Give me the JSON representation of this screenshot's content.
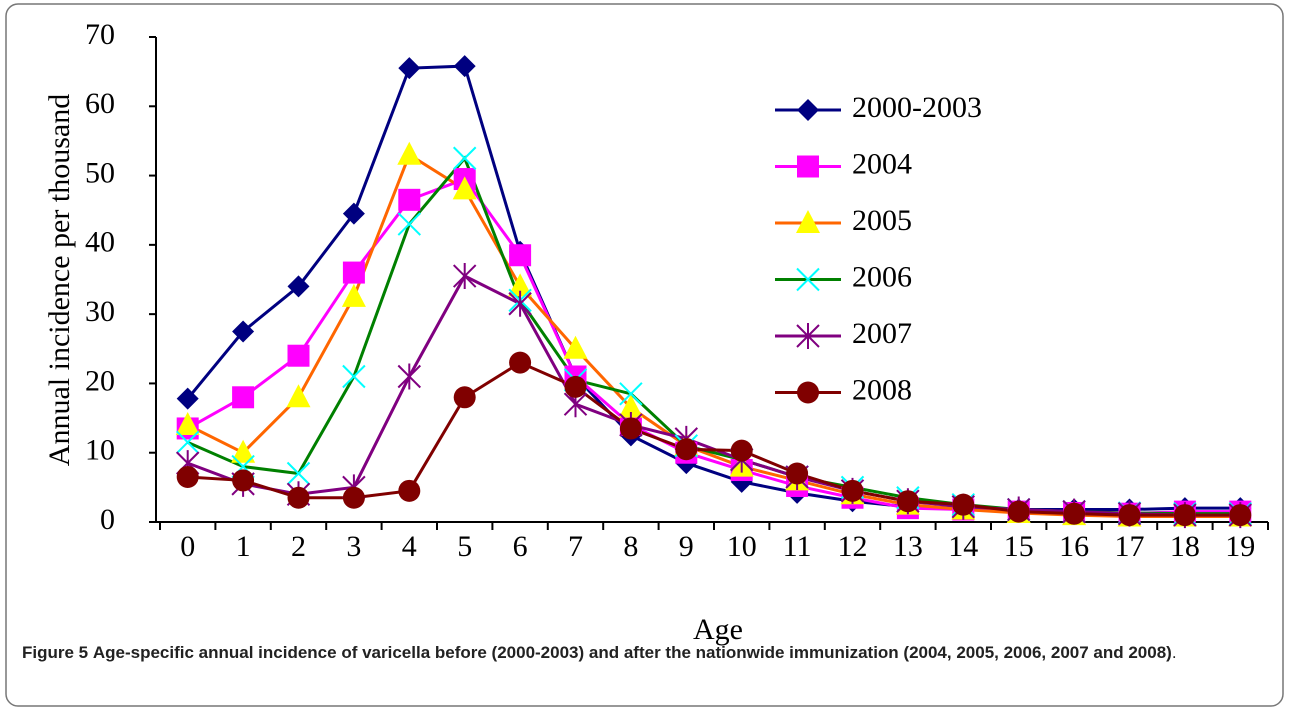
{
  "chart_data": {
    "type": "line",
    "x_label": "Age",
    "y_label": "Annual incidence per thousand",
    "categories": [
      "0",
      "1",
      "2",
      "3",
      "4",
      "5",
      "6",
      "7",
      "8",
      "9",
      "10",
      "11",
      "12",
      "13",
      "14",
      "15",
      "16",
      "17",
      "18",
      "19"
    ],
    "ylim": [
      0,
      70
    ],
    "yticks": [
      0,
      10,
      20,
      30,
      40,
      50,
      60,
      70
    ],
    "grid": false,
    "legend": "upper right",
    "series": [
      {
        "name": "2000-2003",
        "color": "#000080",
        "marker_color": "#000080",
        "marker": "diamond",
        "values": [
          17.8,
          27.5,
          34,
          44.5,
          65.5,
          65.8,
          39,
          21,
          12.5,
          8.5,
          5.8,
          4.2,
          3,
          2.2,
          2,
          1.8,
          1.8,
          1.8,
          2,
          2
        ]
      },
      {
        "name": "2004",
        "color": "#ff00ff",
        "marker_color": "#ff00ff",
        "marker": "square",
        "values": [
          13.5,
          18,
          24,
          36,
          46.5,
          49.5,
          38.5,
          21,
          14,
          10,
          7.5,
          5.2,
          3.5,
          2,
          1.8,
          1.5,
          1.3,
          1.2,
          1.5,
          1.5
        ]
      },
      {
        "name": "2005",
        "color": "#ff6600",
        "marker_color": "#ffff00",
        "marker": "triangle",
        "values": [
          14,
          10,
          18,
          32.5,
          53,
          48,
          34,
          25,
          16.5,
          11,
          8,
          6,
          4,
          2.5,
          1.8,
          1.3,
          1,
          0.8,
          0.8,
          0.8
        ]
      },
      {
        "name": "2006",
        "color": "#008000",
        "marker_color": "#00ffff",
        "marker": "x",
        "values": [
          11.5,
          8,
          7,
          21,
          43,
          52.5,
          32,
          20.5,
          18.5,
          11,
          9,
          6.5,
          5,
          3.5,
          2.5,
          1.8,
          1.5,
          1.3,
          1.2,
          1.2
        ]
      },
      {
        "name": "2007",
        "color": "#800080",
        "marker_color": "#800080",
        "marker": "asterisk",
        "values": [
          8.5,
          5.5,
          4,
          5,
          21,
          35.5,
          31.5,
          17,
          14,
          12,
          9,
          6.5,
          4.5,
          3,
          2.2,
          1.8,
          1.5,
          1.2,
          1,
          1
        ]
      },
      {
        "name": "2008",
        "color": "#800000",
        "marker_color": "#800000",
        "marker": "circle",
        "values": [
          6.5,
          6,
          3.5,
          3.5,
          4.5,
          18,
          23,
          19.5,
          13.5,
          10.5,
          10.3,
          7,
          4.5,
          3,
          2.5,
          1.5,
          1.2,
          1,
          1,
          1
        ]
      }
    ]
  },
  "caption": {
    "label": "Figure 5",
    "text": "Age-specific annual incidence of varicella before (2000-2003) and after the nationwide immunization (2004, 2005, 2006, 2007 and 2008)",
    "end": "."
  }
}
